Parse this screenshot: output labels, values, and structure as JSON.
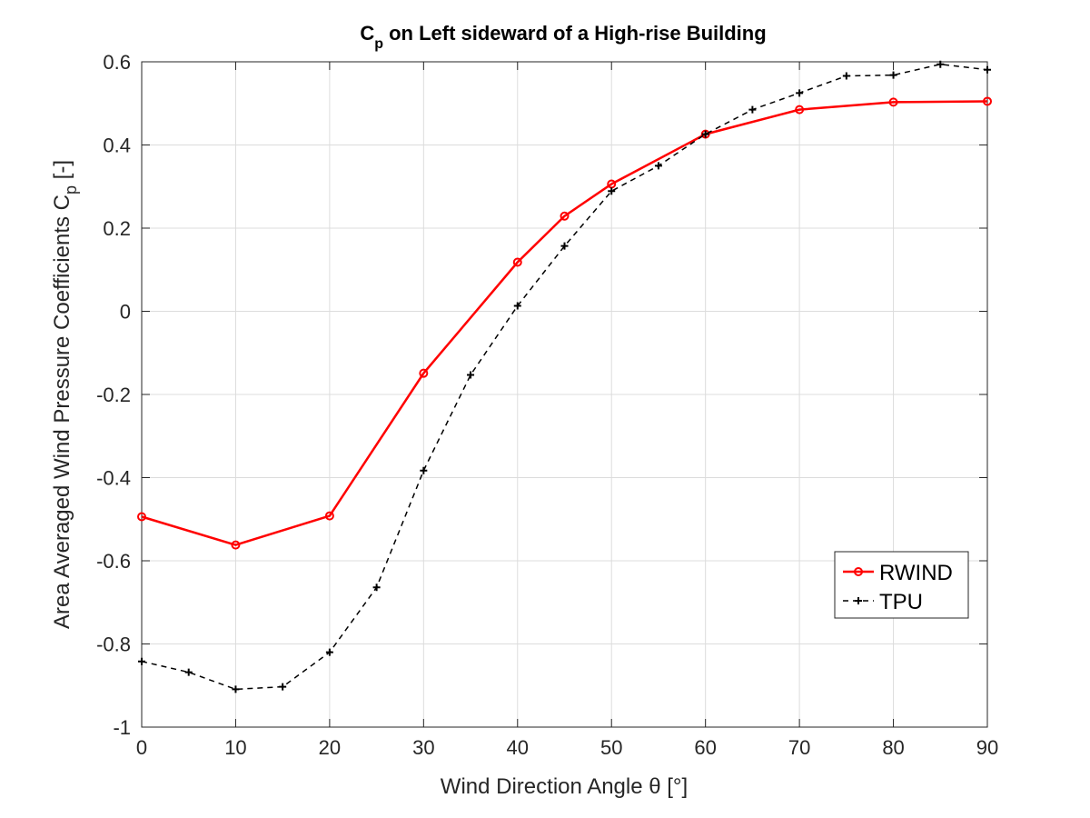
{
  "chart_data": {
    "type": "line",
    "title": {
      "main": "C",
      "sub": "p",
      "rest": " on Left sideward of a High-rise Building"
    },
    "xlabel": "Wind Direction Angle θ [°]",
    "ylabel": {
      "main": "Area Averaged Wind Pressure Coefficients C",
      "sub": "p",
      "rest": "  [-]"
    },
    "xlim": [
      0,
      90
    ],
    "ylim": [
      -1,
      0.6
    ],
    "xticks": [
      0,
      10,
      20,
      30,
      40,
      50,
      60,
      70,
      80,
      90
    ],
    "yticks": [
      -1,
      -0.8,
      -0.6,
      -0.4,
      -0.2,
      0,
      0.2,
      0.4,
      0.6
    ],
    "ytick_labels": [
      "-1",
      "-0.8",
      "-0.6",
      "-0.4",
      "-0.2",
      "0",
      "0.2",
      "0.4",
      "0.6"
    ],
    "grid": true,
    "legend_position": "bottom-right",
    "series": [
      {
        "name": "RWIND",
        "color": "#ff0000",
        "line": "solid",
        "marker": "circle",
        "x": [
          0,
          10,
          20,
          30,
          40,
          45,
          50,
          60,
          70,
          80,
          90
        ],
        "y": [
          -0.494,
          -0.562,
          -0.492,
          -0.149,
          0.118,
          0.229,
          0.306,
          0.426,
          0.485,
          0.503,
          0.505
        ]
      },
      {
        "name": "TPU",
        "color": "#000000",
        "line": "dashed",
        "marker": "plus",
        "x": [
          0,
          5,
          10,
          15,
          20,
          25,
          30,
          35,
          40,
          45,
          50,
          55,
          60,
          65,
          70,
          75,
          80,
          85,
          90
        ],
        "y": [
          -0.842,
          -0.868,
          -0.909,
          -0.903,
          -0.82,
          -0.664,
          -0.383,
          -0.153,
          0.013,
          0.157,
          0.289,
          0.35,
          0.426,
          0.485,
          0.525,
          0.566,
          0.568,
          0.594,
          0.581
        ]
      }
    ]
  }
}
